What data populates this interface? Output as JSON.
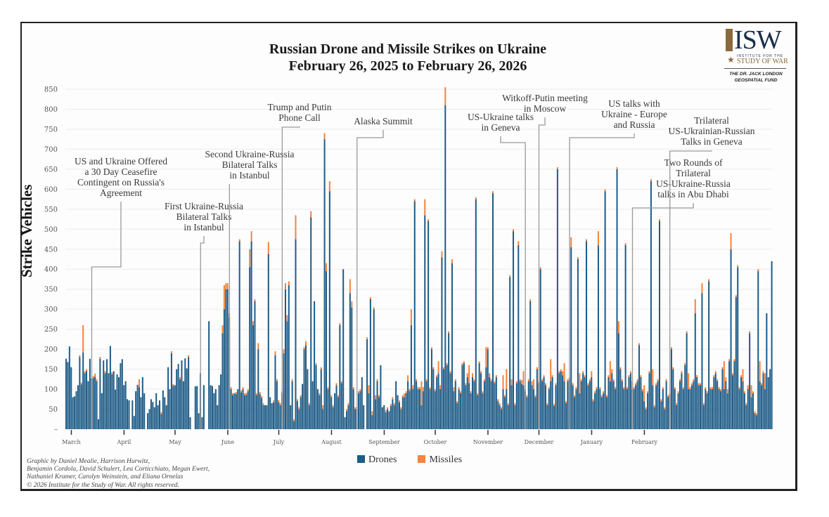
{
  "header": {
    "title_line1": "Russian Drone and Missile Strikes on Ukraine",
    "title_line2": "February 26, 2025 to February 26, 2026"
  },
  "logo": {
    "mark": "ISW",
    "line1": "INSTITUTE FOR THE",
    "line2": "STUDY OF WAR",
    "fund_line1": "THE DR. JACK LONDON",
    "fund_line2": "GEOSPATIAL FUND"
  },
  "legend": {
    "drones_label": "Drones",
    "missiles_label": "Missiles"
  },
  "credits": [
    "Graphic by Daniel Mealie, Harrison Hurwitz,",
    "Benjamin Cordola, David Schulert, Lea Corticchiato, Megan Ewert,",
    "Nathaniel Kramer, Carolyn Weinstein, and Eliana Ornelas",
    "© 2026 Institute for the Study of War. All rights reserved."
  ],
  "chart_data": {
    "type": "bar",
    "stacked": true,
    "title": "Russian Drone and Missile Strikes on Ukraine",
    "subtitle": "February 26, 2025 to February 26, 2026",
    "xlabel": "",
    "ylabel": "Strike Vehicles",
    "ylim": [
      0,
      850
    ],
    "yticks": [
      0,
      50,
      100,
      150,
      200,
      250,
      300,
      350,
      400,
      450,
      500,
      550,
      600,
      650,
      700,
      750,
      800,
      850
    ],
    "grid": true,
    "legend_position": "bottom-center",
    "colors": {
      "Drones": "#1f5c87",
      "Missiles": "#f4843f"
    },
    "month_ticks": [
      {
        "label": "March",
        "day": 3
      },
      {
        "label": "April",
        "day": 34
      },
      {
        "label": "May",
        "day": 64
      },
      {
        "label": "June",
        "day": 95
      },
      {
        "label": "July",
        "day": 125
      },
      {
        "label": "August",
        "day": 156
      },
      {
        "label": "September",
        "day": 187
      },
      {
        "label": "October",
        "day": 217
      },
      {
        "label": "November",
        "day": 248
      },
      {
        "label": "December",
        "day": 278
      },
      {
        "label": "January",
        "day": 309
      },
      {
        "label": "February",
        "day": 340
      }
    ],
    "series": [
      {
        "name": "Drones",
        "values": [
          176,
          168,
          207,
          155,
          80,
          82,
          95,
          110,
          180,
          112,
          192,
          140,
          145,
          120,
          176,
          127,
          128,
          131,
          120,
          25,
          176,
          90,
          172,
          140,
          175,
          140,
          208,
          137,
          145,
          99,
          137,
          130,
          165,
          175,
          110,
          120,
          75,
          72,
          0,
          72,
          33,
          95,
          111,
          105,
          80,
          130,
          90,
          0,
          40,
          50,
          75,
          68,
          55,
          90,
          60,
          72,
          38,
          97,
          80,
          60,
          155,
          100,
          190,
          108,
          110,
          150,
          163,
          125,
          172,
          120,
          177,
          152,
          180,
          30,
          0,
          0,
          107,
          108,
          40,
          140,
          30,
          110,
          0,
          0,
          270,
          110,
          108,
          90,
          100,
          60,
          110,
          137,
          240,
          300,
          350,
          350,
          280,
          100,
          85,
          90,
          88,
          100,
          470,
          92,
          100,
          85,
          86,
          95,
          405,
          470,
          260,
          320,
          85,
          200,
          88,
          78,
          60,
          60,
          60,
          438,
          80,
          65,
          67,
          185,
          120,
          68,
          60,
          90,
          190,
          350,
          270,
          360,
          60,
          120,
          20,
          475,
          70,
          50,
          80,
          113,
          200,
          210,
          150,
          60,
          530,
          120,
          320,
          160,
          100,
          85,
          150,
          50,
          725,
          395,
          100,
          595,
          80,
          55,
          90,
          110,
          80,
          260,
          115,
          400,
          30,
          45,
          60,
          340,
          305,
          100,
          50,
          50,
          90,
          95,
          130,
          60,
          0,
          225,
          90,
          325,
          35,
          300,
          75,
          120,
          80,
          160,
          55,
          60,
          42,
          50,
          45,
          58,
          75,
          60,
          120,
          85,
          67,
          50,
          80,
          80,
          90,
          120,
          96,
          260,
          100,
          570,
          120,
          100,
          100,
          60,
          95,
          535,
          120,
          520,
          100,
          200,
          150,
          95,
          130,
          140,
          100,
          430,
          150,
          810,
          160,
          240,
          140,
          415,
          95,
          120,
          65,
          100,
          90,
          160,
          165,
          110,
          130,
          115,
          90,
          130,
          120,
          575,
          85,
          165,
          140,
          90,
          120,
          155,
          200,
          130,
          120,
          590,
          115,
          130,
          70,
          60,
          50,
          100,
          80,
          100,
          60,
          380,
          110,
          495,
          60,
          115,
          460,
          120,
          113,
          110,
          95,
          80,
          120,
          320,
          110,
          100,
          80,
          150,
          115,
          400,
          120,
          130,
          110,
          60,
          100,
          120,
          130,
          58,
          110,
          650,
          140,
          145,
          135,
          120,
          65,
          120,
          125,
          455,
          110,
          80,
          100,
          425,
          90,
          120,
          140,
          130,
          470,
          110,
          120,
          130,
          70,
          90,
          100,
          460,
          100,
          80,
          90,
          595,
          80,
          130,
          120,
          140,
          120,
          100,
          650,
          240,
          150,
          120,
          100,
          460,
          100,
          130,
          140,
          100,
          100,
          110,
          120,
          210,
          130,
          95,
          70,
          50,
          90,
          140,
          620,
          110,
          55,
          110,
          120,
          520,
          70,
          100,
          50,
          120,
          80,
          85,
          200,
          150,
          100,
          60,
          90,
          120,
          140,
          100,
          160,
          240,
          100,
          100,
          110,
          120,
          290,
          130,
          110,
          110,
          340,
          60,
          100,
          90,
          370,
          100,
          100,
          130,
          140,
          120,
          100,
          95,
          150,
          100,
          120,
          90,
          170,
          450,
          135,
          170,
          330,
          405,
          100,
          130,
          120,
          90,
          60,
          100,
          240,
          80,
          90,
          40,
          35,
          395,
          120,
          110,
          140,
          100,
          290,
          130,
          150,
          420
        ]
      },
      {
        "name": "Missiles",
        "values": [
          0,
          0,
          0,
          0,
          0,
          0,
          0,
          0,
          5,
          5,
          68,
          5,
          5,
          0,
          0,
          0,
          5,
          8,
          5,
          0,
          5,
          0,
          0,
          5,
          0,
          0,
          0,
          5,
          0,
          0,
          0,
          0,
          0,
          0,
          0,
          0,
          0,
          0,
          0,
          0,
          0,
          0,
          0,
          20,
          0,
          0,
          0,
          0,
          0,
          0,
          0,
          0,
          0,
          0,
          0,
          0,
          5,
          0,
          0,
          0,
          0,
          0,
          5,
          5,
          0,
          0,
          0,
          5,
          0,
          0,
          0,
          0,
          5,
          0,
          0,
          0,
          0,
          0,
          0,
          0,
          0,
          0,
          0,
          0,
          0,
          0,
          0,
          0,
          0,
          0,
          0,
          0,
          20,
          60,
          15,
          15,
          10,
          5,
          5,
          0,
          5,
          0,
          5,
          5,
          5,
          5,
          5,
          5,
          45,
          25,
          10,
          5,
          5,
          15,
          5,
          5,
          5,
          0,
          0,
          30,
          0,
          0,
          5,
          10,
          5,
          5,
          5,
          5,
          10,
          15,
          15,
          10,
          0,
          5,
          5,
          60,
          5,
          5,
          5,
          0,
          5,
          10,
          0,
          5,
          15,
          0,
          0,
          5,
          0,
          5,
          5,
          10,
          15,
          20,
          5,
          25,
          5,
          5,
          0,
          5,
          5,
          5,
          5,
          0,
          0,
          5,
          5,
          35,
          15,
          5,
          5,
          5,
          5,
          5,
          0,
          0,
          0,
          5,
          20,
          5,
          10,
          5,
          10,
          5,
          5,
          0,
          0,
          0,
          5,
          5,
          0,
          5,
          5,
          5,
          0,
          0,
          5,
          5,
          5,
          10,
          5,
          15,
          5,
          40,
          10,
          5,
          5,
          5,
          5,
          60,
          10,
          40,
          5,
          5,
          5,
          5,
          5,
          5,
          5,
          30,
          10,
          15,
          5,
          45,
          5,
          5,
          5,
          10,
          10,
          5,
          5,
          5,
          5,
          5,
          5,
          5,
          10,
          45,
          5,
          10,
          5,
          5,
          5,
          5,
          5,
          5,
          5,
          50,
          5,
          10,
          5,
          5,
          5,
          5,
          5,
          5,
          5,
          35,
          5,
          50,
          5,
          5,
          15,
          5,
          5,
          5,
          10,
          5,
          10,
          35,
          5,
          5,
          5,
          5,
          10,
          25,
          5,
          5,
          5,
          5,
          5,
          5,
          5,
          5,
          5,
          55,
          5,
          5,
          5,
          5,
          5,
          5,
          10,
          45,
          5,
          5,
          5,
          25,
          5,
          5,
          5,
          5,
          50,
          5,
          5,
          5,
          5,
          5,
          5,
          15,
          5,
          5,
          5,
          35,
          5,
          5,
          5,
          5,
          5,
          5,
          50,
          10,
          5,
          5,
          5,
          30,
          5,
          5,
          5,
          5,
          5,
          5,
          5,
          20,
          5,
          5,
          5,
          5,
          5,
          5,
          40,
          5,
          5,
          5,
          5,
          40,
          5,
          5,
          5,
          5,
          5,
          5,
          5,
          5,
          5,
          5,
          5,
          5,
          5,
          5,
          5,
          5,
          5,
          5,
          5,
          5,
          40,
          5,
          5,
          5,
          35,
          5,
          5,
          5,
          25,
          5,
          5,
          5,
          5,
          5,
          5,
          5,
          5,
          5,
          5,
          5,
          5,
          70,
          10,
          10,
          5,
          40,
          5,
          5,
          5,
          5,
          5,
          5,
          30,
          5,
          5,
          10,
          5,
          30,
          5,
          5,
          5,
          5,
          50,
          5,
          5,
          40
        ]
      }
    ],
    "annotations": [
      {
        "label": [
          "US and Ukraine Offered",
          "a 30 Day Ceasefire",
          "Contingent on Russia's",
          "Agreement"
        ],
        "day": 15
      },
      {
        "label": [
          "First Ukraine-Russia",
          "Bilateral Talks",
          "in Istanbul"
        ],
        "day": 79
      },
      {
        "label": [
          "Second Ukraine-Russia",
          "Bilateral Talks",
          "in Istanbul"
        ],
        "day": 96
      },
      {
        "label": [
          "Trump and Putin",
          "Phone Call"
        ],
        "day": 127
      },
      {
        "label": [
          "Alaska Summit"
        ],
        "day": 171
      },
      {
        "label": [
          "US-Ukraine talks",
          "in Geneva"
        ],
        "day": 270
      },
      {
        "label": [
          "Witkoff-Putin meeting",
          "in Moscow"
        ],
        "day": 278
      },
      {
        "label": [
          "US talks with",
          "Ukraine - Europe",
          "and Russia"
        ],
        "day": 296
      },
      {
        "label": [
          "Two Rounds of",
          "Trilateral",
          "US-Ukraine-Russia",
          "talks in Abu Dhabi"
        ],
        "day": 333
      },
      {
        "label": [
          "Trilateral",
          "US-Ukrainian-Russian",
          "Talks in Geneva"
        ],
        "day": 355
      }
    ]
  }
}
